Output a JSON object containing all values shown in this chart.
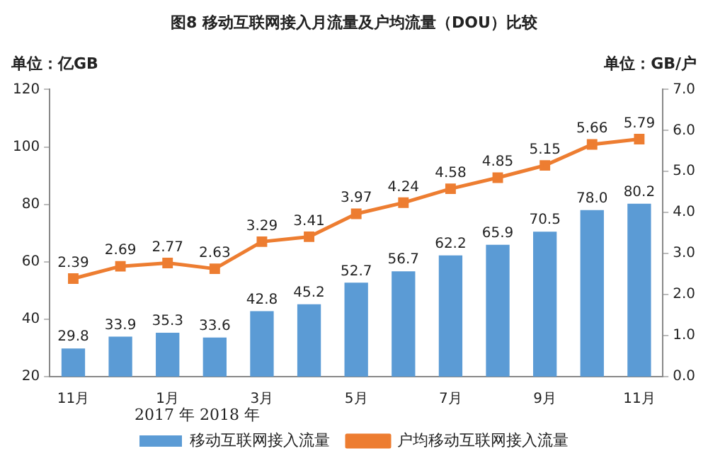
{
  "chart_data": {
    "type": "bar",
    "title": "图8 移动互联网接入月流量及户均流量（DOU）比较",
    "ylabel": "单位：亿GB",
    "y2label": "单位：GB/户",
    "categories": [
      "11月",
      null,
      "1月",
      null,
      "3月",
      null,
      "5月",
      null,
      "7月",
      null,
      "9月",
      null,
      "11月"
    ],
    "series": [
      {
        "name": "移动互联网接入流量",
        "color": "#5b9bd5",
        "values": [
          29.8,
          33.9,
          35.3,
          33.6,
          42.8,
          45.2,
          52.7,
          56.7,
          62.2,
          65.9,
          70.5,
          78.0,
          80.2
        ],
        "value_labels": [
          "29.8",
          "33.9",
          "35.3",
          "33.6",
          "42.8",
          "45.2",
          "52.7",
          "56.7",
          "62.2",
          "65.9",
          "70.5",
          "78.0",
          "80.2"
        ]
      },
      {
        "name": "户均移动互联网接入流量",
        "type": "line",
        "axis": "y2",
        "color": "#ed7d31",
        "marker": "square",
        "values": [
          2.39,
          2.69,
          2.77,
          2.63,
          3.29,
          3.41,
          3.97,
          4.24,
          4.58,
          4.85,
          5.15,
          5.66,
          5.79
        ]
      }
    ],
    "ylim": [
      20,
      120
    ],
    "yticks": [
      20,
      40,
      60,
      80,
      100,
      120
    ],
    "y2lim": [
      0,
      7
    ],
    "y2ticks": [
      {
        "value": 0,
        "label": "0.0"
      },
      {
        "value": 1,
        "label": "1.0"
      },
      {
        "value": 2,
        "label": "2.0"
      },
      {
        "value": 3,
        "label": "3.0"
      },
      {
        "value": 4,
        "label": "4.0"
      },
      {
        "value": 5,
        "label": "5.0"
      },
      {
        "value": 6,
        "label": "6.0"
      },
      {
        "value": 7,
        "label": "7.0"
      }
    ],
    "annotations": [
      "2017 年 2018 年"
    ],
    "data_labels": true,
    "grid": false,
    "legend": "bottom"
  }
}
